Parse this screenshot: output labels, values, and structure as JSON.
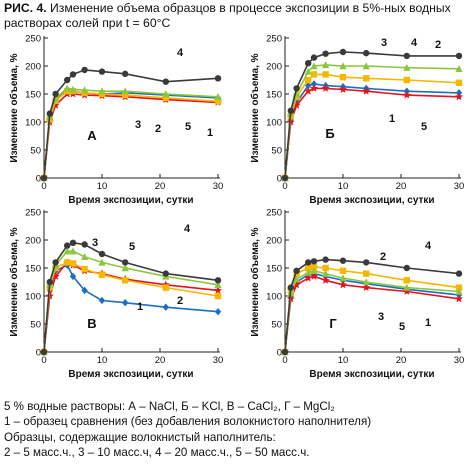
{
  "caption": {
    "fig": "РИС. 4.",
    "text": "Изменение объема образцов в процессе экспозиции в 5%-ных водных растворах солей при t = 60°C"
  },
  "notes": {
    "line1": "5 % водные растворы: А – NaCl, Б – KCl, В – CaCl₂, Г – MgCl₂",
    "line2": "1 – образец сравнения (без добавления волокнистого наполнителя)",
    "line3": "Образцы, содержащие волокнистый наполнитель:",
    "line4": "2 – 5 масс.ч., 3 – 10 масс.ч, 4 – 20 масс.ч., 5 – 50 масс.ч."
  },
  "colors": {
    "1": "#e8121d",
    "2": "#f5b700",
    "3": "#8cc63f",
    "4": "#3a3a3a",
    "5": "#1a6fc4"
  },
  "chart_data": [
    {
      "type": "line",
      "panel": "А",
      "xlabel": "Время экспозиции, сутки",
      "ylabel": "Изменение объема, %",
      "xlim": [
        0,
        30
      ],
      "ylim": [
        0,
        250
      ],
      "xticks": [
        "0",
        "10",
        "20",
        "30"
      ],
      "yticks": [
        "0",
        "50",
        "100",
        "150",
        "200",
        "250"
      ],
      "x": [
        0,
        1,
        2,
        4,
        5,
        7,
        10,
        14,
        21,
        30
      ],
      "series": [
        {
          "name": "1",
          "marker": "star",
          "values": [
            0,
            100,
            130,
            150,
            150,
            148,
            147,
            145,
            140,
            135
          ]
        },
        {
          "name": "2",
          "marker": "square",
          "values": [
            0,
            105,
            138,
            155,
            155,
            152,
            150,
            148,
            143,
            137
          ]
        },
        {
          "name": "3",
          "marker": "triangle",
          "values": [
            0,
            110,
            142,
            160,
            158,
            157,
            155,
            155,
            150,
            145
          ]
        },
        {
          "name": "4",
          "marker": "circle",
          "values": [
            0,
            115,
            150,
            175,
            185,
            193,
            190,
            186,
            172,
            178
          ]
        },
        {
          "name": "5",
          "marker": "diamond",
          "values": [
            0,
            108,
            140,
            158,
            155,
            152,
            150,
            152,
            148,
            143
          ]
        }
      ]
    },
    {
      "type": "line",
      "panel": "Б",
      "xlabel": "Время экспозиции, сутки",
      "ylabel": "Изменение объема, %",
      "xlim": [
        0,
        30
      ],
      "ylim": [
        0,
        250
      ],
      "xticks": [
        "0",
        "10",
        "20",
        "30"
      ],
      "yticks": [
        "0",
        "50",
        "100",
        "150",
        "200",
        "250"
      ],
      "x": [
        0,
        1,
        2,
        4,
        5,
        7,
        10,
        14,
        21,
        30
      ],
      "series": [
        {
          "name": "1",
          "marker": "star",
          "values": [
            0,
            100,
            130,
            155,
            160,
            160,
            158,
            155,
            148,
            145
          ]
        },
        {
          "name": "2",
          "marker": "square",
          "values": [
            0,
            110,
            145,
            175,
            185,
            185,
            180,
            178,
            175,
            170
          ]
        },
        {
          "name": "3",
          "marker": "triangle",
          "values": [
            0,
            115,
            150,
            190,
            200,
            202,
            200,
            200,
            197,
            195
          ]
        },
        {
          "name": "4",
          "marker": "circle",
          "values": [
            0,
            120,
            160,
            205,
            215,
            222,
            225,
            223,
            218,
            218
          ]
        },
        {
          "name": "5",
          "marker": "diamond",
          "values": [
            0,
            105,
            135,
            165,
            168,
            165,
            163,
            160,
            155,
            152
          ]
        }
      ]
    },
    {
      "type": "line",
      "panel": "В",
      "xlabel": "Время экспозиции, сутки",
      "ylabel": "Изменение объема, %",
      "xlim": [
        0,
        30
      ],
      "ylim": [
        0,
        250
      ],
      "xticks": [
        "0",
        "10",
        "20",
        "30"
      ],
      "yticks": [
        "0",
        "50",
        "100",
        "150",
        "200",
        "250"
      ],
      "x": [
        0,
        1,
        2,
        4,
        5,
        7,
        10,
        14,
        21,
        30
      ],
      "series": [
        {
          "name": "1",
          "marker": "star",
          "values": [
            0,
            100,
            135,
            160,
            155,
            145,
            140,
            130,
            120,
            110
          ]
        },
        {
          "name": "2",
          "marker": "square",
          "values": [
            0,
            115,
            150,
            160,
            158,
            148,
            138,
            128,
            115,
            100
          ]
        },
        {
          "name": "3",
          "marker": "triangle",
          "values": [
            0,
            120,
            155,
            180,
            180,
            170,
            160,
            150,
            135,
            120
          ]
        },
        {
          "name": "4",
          "marker": "circle",
          "values": [
            0,
            125,
            160,
            190,
            195,
            192,
            175,
            160,
            140,
            128
          ]
        },
        {
          "name": "5",
          "marker": "diamond",
          "values": [
            0,
            110,
            145,
            155,
            135,
            110,
            92,
            88,
            80,
            72
          ]
        }
      ]
    },
    {
      "type": "line",
      "panel": "Г",
      "xlabel": "Время экспозиции, сутки",
      "ylabel": "Изменение объема, %",
      "xlim": [
        0,
        30
      ],
      "ylim": [
        0,
        250
      ],
      "xticks": [
        "0",
        "10",
        "20",
        "30"
      ],
      "yticks": [
        "0",
        "50",
        "100",
        "150",
        "200",
        "250"
      ],
      "x": [
        0,
        1,
        2,
        4,
        5,
        7,
        10,
        14,
        21,
        30
      ],
      "series": [
        {
          "name": "1",
          "marker": "star",
          "values": [
            0,
            95,
            120,
            132,
            135,
            128,
            120,
            115,
            108,
            95
          ]
        },
        {
          "name": "2",
          "marker": "square",
          "values": [
            0,
            110,
            140,
            150,
            152,
            150,
            145,
            140,
            128,
            115
          ]
        },
        {
          "name": "3",
          "marker": "triangle",
          "values": [
            0,
            105,
            130,
            142,
            145,
            140,
            132,
            125,
            115,
            108
          ]
        },
        {
          "name": "4",
          "marker": "circle",
          "values": [
            0,
            115,
            145,
            160,
            162,
            165,
            163,
            160,
            150,
            140
          ]
        },
        {
          "name": "5",
          "marker": "diamond",
          "values": [
            0,
            100,
            125,
            138,
            140,
            135,
            128,
            122,
            112,
            102
          ]
        }
      ]
    }
  ]
}
